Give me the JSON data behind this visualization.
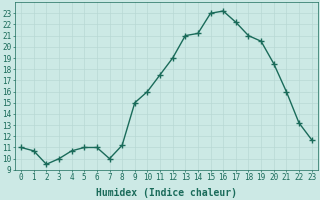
{
  "x": [
    0,
    1,
    2,
    3,
    4,
    5,
    6,
    7,
    8,
    9,
    10,
    11,
    12,
    13,
    14,
    15,
    16,
    17,
    18,
    19,
    20,
    21,
    22,
    23
  ],
  "y": [
    11,
    10.7,
    9.5,
    10,
    10.7,
    11,
    11,
    10,
    11.2,
    15,
    16,
    17.5,
    19,
    21,
    21.2,
    23,
    23.2,
    22.2,
    21,
    20.5,
    18.5,
    16,
    13.2,
    11.7
  ],
  "line_color": "#1a6b5a",
  "marker": "+",
  "marker_size": 4,
  "bg_color": "#cce9e5",
  "grid_color": "#b8d8d4",
  "xlabel": "Humidex (Indice chaleur)",
  "xlim": [
    -0.5,
    23.5
  ],
  "ylim": [
    9,
    24
  ],
  "yticks": [
    9,
    10,
    11,
    12,
    13,
    14,
    15,
    16,
    17,
    18,
    19,
    20,
    21,
    22,
    23
  ],
  "xticks": [
    0,
    1,
    2,
    3,
    4,
    5,
    6,
    7,
    8,
    9,
    10,
    11,
    12,
    13,
    14,
    15,
    16,
    17,
    18,
    19,
    20,
    21,
    22,
    23
  ],
  "tick_fontsize": 5.5,
  "xlabel_fontsize": 7,
  "line_width": 1.0,
  "marker_linewidth": 1.0
}
